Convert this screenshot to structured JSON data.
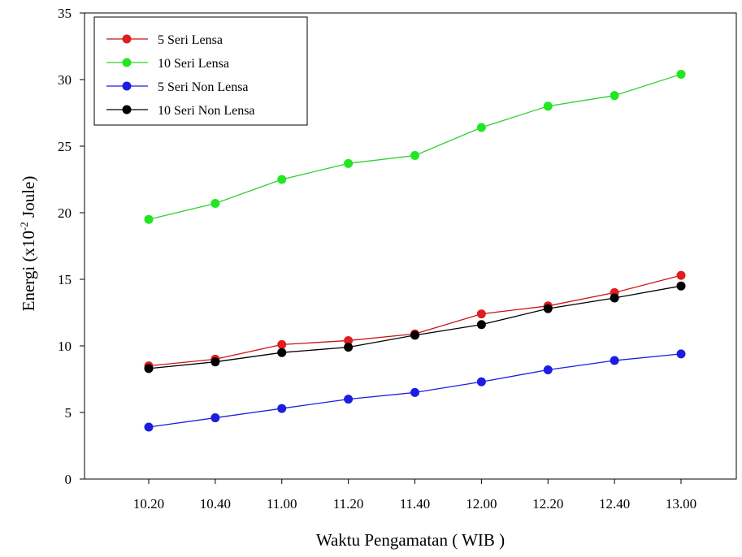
{
  "chart_data": {
    "type": "line",
    "title": "",
    "xlabel": "Waktu Pengamatan ( WIB )",
    "ylabel": {
      "prefix": "Energi (x10",
      "exponent": "-2",
      "suffix": " Joule)"
    },
    "categories": [
      "10.20",
      "10.40",
      "11.00",
      "11.20",
      "11.40",
      "12.00",
      "12.20",
      "12.40",
      "13.00"
    ],
    "ylim": [
      0,
      35
    ],
    "yticks": [
      "0",
      "5",
      "10",
      "15",
      "20",
      "25",
      "30",
      "35"
    ],
    "grid": false,
    "legend_position": "top-left",
    "series": [
      {
        "name": "5 Seri Lensa",
        "color": "#e11d1d",
        "values": [
          8.5,
          9.0,
          10.1,
          10.4,
          10.9,
          12.4,
          13.0,
          14.0,
          15.3
        ]
      },
      {
        "name": "10 Seri Lensa",
        "color": "#22e622",
        "values": [
          19.5,
          20.7,
          22.5,
          23.7,
          24.3,
          26.4,
          28.0,
          28.8,
          30.4
        ]
      },
      {
        "name": "5 Seri Non Lensa",
        "color": "#1d1de1",
        "values": [
          3.9,
          4.6,
          5.3,
          6.0,
          6.5,
          7.3,
          8.2,
          8.9,
          9.4
        ]
      },
      {
        "name": "10 Seri Non Lensa",
        "color": "#000000",
        "values": [
          8.3,
          8.8,
          9.5,
          9.9,
          10.8,
          11.6,
          12.8,
          13.6,
          14.5
        ]
      }
    ]
  }
}
